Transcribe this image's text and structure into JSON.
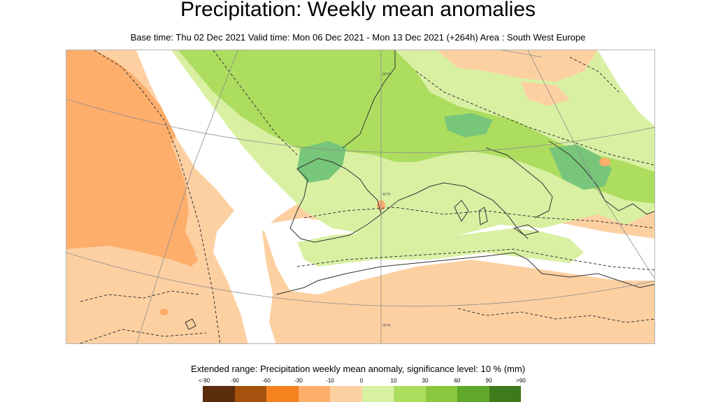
{
  "header": {
    "title": "Precipitation: Weekly mean anomalies",
    "subtitle": "Base time: Thu 02 Dec 2021 Valid time: Mon 06 Dec 2021 - Mon 13 Dec 2021 (+264h) Area : South West Europe"
  },
  "map": {
    "area": "South West Europe",
    "grid_labels": [
      "50°N",
      "40°N",
      "30°N"
    ],
    "colors": {
      "dry_strong": "#fdae6b",
      "dry_weak": "#fdd0a2",
      "neutral": "#ffffff",
      "wet_weak": "#d9f0a3",
      "wet_mid": "#addd5f",
      "wet_strong": "#78c679",
      "wet_very": "#41ab5d",
      "coast": "#333333",
      "grid": "#8c8c8c"
    }
  },
  "legend": {
    "title": "Extended range: Precipitation weekly mean anomaly, significance level: 10 % (mm)",
    "labels": [
      "<-90",
      "-90",
      "-60",
      "-30",
      "-10",
      "0",
      "10",
      "30",
      "60",
      "90",
      ">90"
    ],
    "colors": [
      "#5a2d0c",
      "#a6520f",
      "#f6821f",
      "#fdae6b",
      "#fdd0a2",
      "#d9f0a3",
      "#addd5f",
      "#8bc63f",
      "#5fa82a",
      "#3f7a1c"
    ]
  }
}
